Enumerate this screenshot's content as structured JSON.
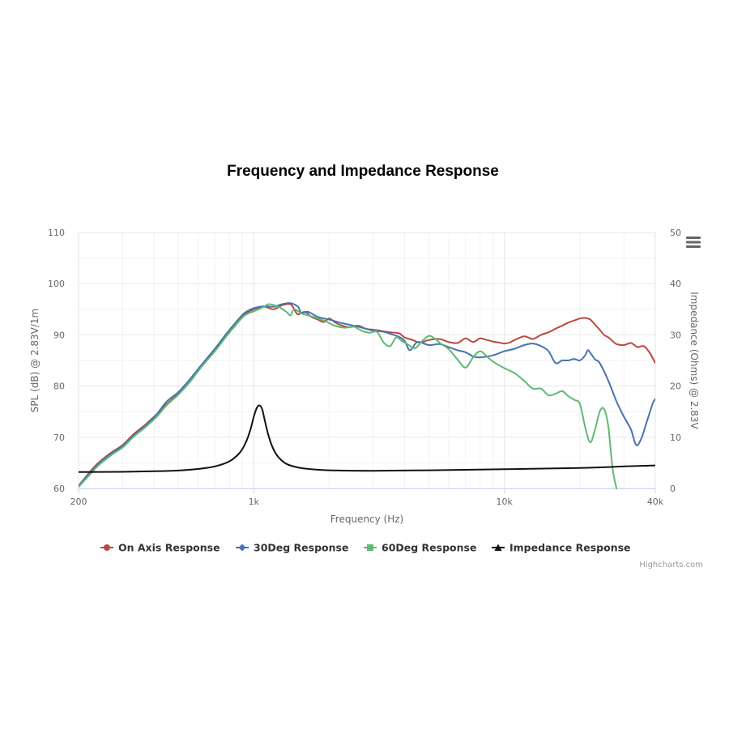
{
  "chart_data": {
    "type": "line",
    "title": "Frequency and Impedance Response",
    "xlabel": "Frequency (Hz)",
    "ylabel": "SPL (dB) @ 2.83V/1m",
    "y2label": "Impedance (Ohms) @ 2.83V",
    "xscale": "log",
    "xlim": [
      200,
      40000
    ],
    "ylim": [
      60,
      110
    ],
    "y2lim": [
      0,
      50
    ],
    "x_ticks": [
      {
        "value": 200,
        "label": "200"
      },
      {
        "value": 1000,
        "label": "1k"
      },
      {
        "value": 10000,
        "label": "10k"
      },
      {
        "value": 40000,
        "label": "40k"
      }
    ],
    "y_ticks": [
      "60",
      "70",
      "80",
      "90",
      "100",
      "110"
    ],
    "y2_ticks": [
      "0",
      "10",
      "20",
      "30",
      "40",
      "50"
    ],
    "grid": true,
    "legend_position": "bottom",
    "credits": "Highcharts.com",
    "series": [
      {
        "name": "On Axis Response",
        "color": "#b84a3e",
        "marker": "circle",
        "axis": "left",
        "points": [
          [
            200,
            60.5
          ],
          [
            220,
            63
          ],
          [
            240,
            65
          ],
          [
            270,
            67
          ],
          [
            300,
            68.5
          ],
          [
            330,
            70.5
          ],
          [
            370,
            72.5
          ],
          [
            410,
            74.5
          ],
          [
            450,
            76.5
          ],
          [
            500,
            78.5
          ],
          [
            560,
            81
          ],
          [
            620,
            84
          ],
          [
            700,
            87
          ],
          [
            780,
            90
          ],
          [
            850,
            92
          ],
          [
            920,
            94
          ],
          [
            1000,
            95
          ],
          [
            1100,
            95.5
          ],
          [
            1200,
            95
          ],
          [
            1300,
            95.8
          ],
          [
            1400,
            96
          ],
          [
            1450,
            95
          ],
          [
            1500,
            94
          ],
          [
            1600,
            94.5
          ],
          [
            1700,
            93.5
          ],
          [
            1800,
            93
          ],
          [
            1900,
            92.5
          ],
          [
            2000,
            93.2
          ],
          [
            2100,
            92.5
          ],
          [
            2200,
            92
          ],
          [
            2400,
            91.5
          ],
          [
            2600,
            91.8
          ],
          [
            2800,
            91.2
          ],
          [
            3000,
            91
          ],
          [
            3200,
            90.8
          ],
          [
            3500,
            90.5
          ],
          [
            3800,
            90.3
          ],
          [
            4000,
            89.5
          ],
          [
            4300,
            89
          ],
          [
            4600,
            88.5
          ],
          [
            5000,
            89
          ],
          [
            5500,
            89.2
          ],
          [
            6000,
            88.6
          ],
          [
            6500,
            88.4
          ],
          [
            7000,
            89.3
          ],
          [
            7500,
            88.6
          ],
          [
            8000,
            89.3
          ],
          [
            8500,
            89
          ],
          [
            9000,
            88.7
          ],
          [
            9500,
            88.5
          ],
          [
            10000,
            88.3
          ],
          [
            10500,
            88.5
          ],
          [
            11000,
            89
          ],
          [
            12000,
            89.7
          ],
          [
            13000,
            89.2
          ],
          [
            14000,
            90
          ],
          [
            15000,
            90.5
          ],
          [
            16000,
            91.2
          ],
          [
            17000,
            91.8
          ],
          [
            18000,
            92.4
          ],
          [
            19000,
            92.8
          ],
          [
            20000,
            93.2
          ],
          [
            21000,
            93.3
          ],
          [
            22000,
            93
          ],
          [
            23000,
            92
          ],
          [
            24000,
            91
          ],
          [
            25000,
            90
          ],
          [
            26000,
            89.5
          ],
          [
            27000,
            88.8
          ],
          [
            28000,
            88.2
          ],
          [
            30000,
            88
          ],
          [
            32000,
            88.4
          ],
          [
            34000,
            87.6
          ],
          [
            36000,
            87.8
          ],
          [
            38000,
            86.5
          ],
          [
            40000,
            84.5
          ]
        ]
      },
      {
        "name": "30Deg Response",
        "color": "#4a72b0",
        "marker": "diamond",
        "axis": "left",
        "points": [
          [
            200,
            60.5
          ],
          [
            220,
            62.8
          ],
          [
            240,
            64.8
          ],
          [
            270,
            66.8
          ],
          [
            300,
            68.3
          ],
          [
            330,
            70.2
          ],
          [
            370,
            72.3
          ],
          [
            410,
            74.5
          ],
          [
            450,
            77
          ],
          [
            500,
            78.8
          ],
          [
            560,
            81.5
          ],
          [
            620,
            84.2
          ],
          [
            700,
            87.3
          ],
          [
            780,
            90.3
          ],
          [
            850,
            92.5
          ],
          [
            920,
            94.3
          ],
          [
            1000,
            95.2
          ],
          [
            1100,
            95.6
          ],
          [
            1200,
            95.5
          ],
          [
            1300,
            96
          ],
          [
            1400,
            96.2
          ],
          [
            1500,
            95.5
          ],
          [
            1550,
            94.3
          ],
          [
            1650,
            94.5
          ],
          [
            1800,
            93.5
          ],
          [
            2000,
            93
          ],
          [
            2200,
            92.4
          ],
          [
            2400,
            92
          ],
          [
            2600,
            91.6
          ],
          [
            2800,
            91.2
          ],
          [
            3000,
            90.8
          ],
          [
            3300,
            90.6
          ],
          [
            3500,
            90.2
          ],
          [
            3800,
            89.6
          ],
          [
            4000,
            88.8
          ],
          [
            4200,
            87
          ],
          [
            4500,
            88.6
          ],
          [
            5000,
            88
          ],
          [
            5500,
            88.2
          ],
          [
            6000,
            87.6
          ],
          [
            6500,
            87
          ],
          [
            7000,
            86.6
          ],
          [
            7500,
            85.8
          ],
          [
            8000,
            85.6
          ],
          [
            9000,
            86
          ],
          [
            10000,
            86.8
          ],
          [
            11000,
            87.3
          ],
          [
            12000,
            88
          ],
          [
            13000,
            88.3
          ],
          [
            14000,
            87.8
          ],
          [
            15000,
            86.8
          ],
          [
            16000,
            84.5
          ],
          [
            17000,
            85
          ],
          [
            18000,
            85
          ],
          [
            19000,
            85.3
          ],
          [
            20000,
            85
          ],
          [
            21000,
            86
          ],
          [
            21500,
            87
          ],
          [
            22000,
            86.5
          ],
          [
            23000,
            85.2
          ],
          [
            24000,
            84.5
          ],
          [
            26000,
            81
          ],
          [
            28000,
            77
          ],
          [
            30000,
            74
          ],
          [
            32000,
            71.5
          ],
          [
            33500,
            68.5
          ],
          [
            35000,
            69.5
          ],
          [
            37000,
            73
          ],
          [
            39000,
            76.5
          ],
          [
            40000,
            77.5
          ]
        ]
      },
      {
        "name": "60Deg Response",
        "color": "#5cba74",
        "marker": "square",
        "axis": "left",
        "points": [
          [
            200,
            60.3
          ],
          [
            220,
            62.5
          ],
          [
            240,
            64.5
          ],
          [
            270,
            66.5
          ],
          [
            300,
            68
          ],
          [
            330,
            70
          ],
          [
            370,
            72
          ],
          [
            410,
            74
          ],
          [
            450,
            76.3
          ],
          [
            500,
            78.3
          ],
          [
            560,
            81
          ],
          [
            620,
            83.8
          ],
          [
            700,
            86.8
          ],
          [
            780,
            89.8
          ],
          [
            850,
            92
          ],
          [
            920,
            93.8
          ],
          [
            1000,
            94.6
          ],
          [
            1100,
            95.5
          ],
          [
            1150,
            96
          ],
          [
            1250,
            95.5
          ],
          [
            1350,
            94.5
          ],
          [
            1400,
            93.8
          ],
          [
            1450,
            95
          ],
          [
            1550,
            94.2
          ],
          [
            1700,
            93.6
          ],
          [
            1900,
            92.8
          ],
          [
            2100,
            91.8
          ],
          [
            2300,
            91.4
          ],
          [
            2500,
            91.6
          ],
          [
            2700,
            90.8
          ],
          [
            2900,
            90.4
          ],
          [
            3100,
            90.6
          ],
          [
            3300,
            88.5
          ],
          [
            3500,
            87.8
          ],
          [
            3700,
            89.5
          ],
          [
            3900,
            88.8
          ],
          [
            4100,
            88.2
          ],
          [
            4400,
            87.4
          ],
          [
            4700,
            88.8
          ],
          [
            5000,
            89.8
          ],
          [
            5300,
            89.2
          ],
          [
            5600,
            88.2
          ],
          [
            6000,
            87.2
          ],
          [
            6500,
            85.2
          ],
          [
            7000,
            83.6
          ],
          [
            7500,
            85.6
          ],
          [
            8000,
            86.8
          ],
          [
            8500,
            85.8
          ],
          [
            9000,
            84.8
          ],
          [
            10000,
            83.5
          ],
          [
            11000,
            82.5
          ],
          [
            12000,
            81
          ],
          [
            13000,
            79.5
          ],
          [
            14000,
            79.5
          ],
          [
            15000,
            78.2
          ],
          [
            16000,
            78.5
          ],
          [
            17000,
            79
          ],
          [
            18000,
            78
          ],
          [
            19000,
            77.3
          ],
          [
            20000,
            76.5
          ],
          [
            21000,
            72
          ],
          [
            22000,
            69
          ],
          [
            23000,
            71.5
          ],
          [
            24000,
            75
          ],
          [
            25000,
            75.5
          ],
          [
            26000,
            72
          ],
          [
            27000,
            64
          ],
          [
            28000,
            60
          ]
        ]
      },
      {
        "name": "Impedance Response",
        "color": "#111111",
        "marker": "triangle",
        "axis": "right",
        "points": [
          [
            200,
            3.2
          ],
          [
            300,
            3.25
          ],
          [
            400,
            3.35
          ],
          [
            500,
            3.5
          ],
          [
            600,
            3.8
          ],
          [
            700,
            4.3
          ],
          [
            800,
            5.3
          ],
          [
            880,
            7
          ],
          [
            930,
            9
          ],
          [
            970,
            11.5
          ],
          [
            1000,
            14
          ],
          [
            1030,
            15.8
          ],
          [
            1055,
            16.2
          ],
          [
            1080,
            15.5
          ],
          [
            1110,
            13
          ],
          [
            1150,
            10
          ],
          [
            1200,
            7.6
          ],
          [
            1260,
            6
          ],
          [
            1350,
            4.8
          ],
          [
            1500,
            4.1
          ],
          [
            1700,
            3.75
          ],
          [
            2000,
            3.55
          ],
          [
            3000,
            3.45
          ],
          [
            5000,
            3.55
          ],
          [
            10000,
            3.75
          ],
          [
            20000,
            4
          ],
          [
            30000,
            4.3
          ],
          [
            40000,
            4.5
          ]
        ]
      }
    ]
  },
  "ui": {
    "menu_icon": "hamburger-menu-icon"
  }
}
